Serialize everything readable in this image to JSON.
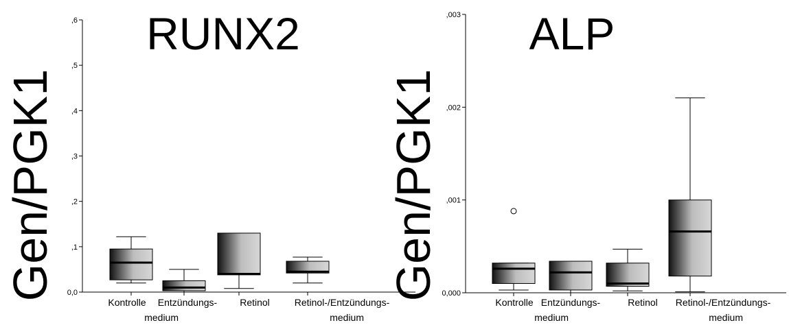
{
  "chart_data": [
    {
      "type": "box",
      "title": "RUNX2",
      "ylabel": "Gen/PGK1",
      "ylim": [
        0,
        0.6
      ],
      "yticks": [
        {
          "value": 0.0,
          "label": "0,0"
        },
        {
          "value": 0.1,
          "label": ",1"
        },
        {
          "value": 0.2,
          "label": ",2"
        },
        {
          "value": 0.3,
          "label": ",3"
        },
        {
          "value": 0.4,
          "label": ",4"
        },
        {
          "value": 0.5,
          "label": ",5"
        },
        {
          "value": 0.6,
          "label": ",6"
        }
      ],
      "categories": [
        [
          "Kontrolle"
        ],
        [
          "Entzündungs-",
          "medium"
        ],
        [
          "Retinol"
        ],
        [
          "Retinol-/Entzündungs-",
          "medium"
        ]
      ],
      "boxes": [
        {
          "min": 0.02,
          "q1": 0.027,
          "median": 0.065,
          "q3": 0.095,
          "max": 0.122,
          "outliers": []
        },
        {
          "min": 0.0,
          "q1": 0.003,
          "median": 0.01,
          "q3": 0.025,
          "max": 0.05,
          "outliers": []
        },
        {
          "min": 0.008,
          "q1": 0.038,
          "median": 0.04,
          "q3": 0.13,
          "max": 0.13,
          "outliers": []
        },
        {
          "min": 0.02,
          "q1": 0.042,
          "median": 0.045,
          "q3": 0.068,
          "max": 0.077,
          "outliers": []
        }
      ]
    },
    {
      "type": "box",
      "title": "ALP",
      "ylabel": "Gen/PGK1",
      "ylim": [
        0,
        0.003
      ],
      "yticks": [
        {
          "value": 0.0,
          "label": "0,000"
        },
        {
          "value": 0.001,
          "label": ",001"
        },
        {
          "value": 0.002,
          "label": ",002"
        },
        {
          "value": 0.003,
          "label": ",003"
        }
      ],
      "categories": [
        [
          "Kontrolle"
        ],
        [
          "Entzündungs-",
          "medium"
        ],
        [
          "Retinol"
        ],
        [
          "Retinol-/Entzündungs-",
          "medium"
        ]
      ],
      "boxes": [
        {
          "min": 3e-05,
          "q1": 0.0001,
          "median": 0.00026,
          "q3": 0.00032,
          "max": 0.00032,
          "outliers": [
            0.00088
          ]
        },
        {
          "min": 0.0,
          "q1": 3e-05,
          "median": 0.00022,
          "q3": 0.00034,
          "max": 0.00034,
          "outliers": []
        },
        {
          "min": 2e-05,
          "q1": 7e-05,
          "median": 0.0001,
          "q3": 0.00032,
          "max": 0.00047,
          "outliers": []
        },
        {
          "min": 1e-05,
          "q1": 0.00018,
          "median": 0.00066,
          "q3": 0.001,
          "max": 0.0021,
          "outliers": []
        }
      ]
    }
  ]
}
